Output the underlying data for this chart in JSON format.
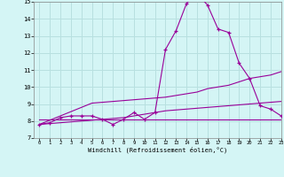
{
  "x": [
    0,
    1,
    2,
    3,
    4,
    5,
    6,
    7,
    8,
    9,
    10,
    11,
    12,
    13,
    14,
    15,
    16,
    17,
    18,
    19,
    20,
    21,
    22,
    23
  ],
  "y_main": [
    7.8,
    7.9,
    8.2,
    8.3,
    8.3,
    8.3,
    8.1,
    7.8,
    8.1,
    8.5,
    8.1,
    8.5,
    12.2,
    13.3,
    14.9,
    15.5,
    14.8,
    13.4,
    13.2,
    11.4,
    10.5,
    8.9,
    8.7,
    8.3
  ],
  "y_line1": [
    7.8,
    8.05,
    8.3,
    8.55,
    8.8,
    9.05,
    9.1,
    9.15,
    9.2,
    9.25,
    9.3,
    9.35,
    9.4,
    9.5,
    9.6,
    9.7,
    9.9,
    10.0,
    10.1,
    10.3,
    10.5,
    10.6,
    10.7,
    10.9
  ],
  "y_line2": [
    7.8,
    7.85,
    7.9,
    7.95,
    8.0,
    8.05,
    8.1,
    8.15,
    8.2,
    8.3,
    8.4,
    8.5,
    8.6,
    8.65,
    8.7,
    8.75,
    8.8,
    8.85,
    8.9,
    8.95,
    9.0,
    9.05,
    9.1,
    9.15
  ],
  "y_flat": [
    8.1,
    8.1,
    8.1,
    8.1,
    8.1,
    8.1,
    8.1,
    8.1,
    8.1,
    8.1,
    8.1,
    8.1,
    8.1,
    8.1,
    8.1,
    8.1,
    8.1,
    8.1,
    8.1,
    8.1,
    8.1,
    8.1,
    8.1,
    8.1
  ],
  "line_color": "#990099",
  "bg_color": "#d4f5f5",
  "grid_color": "#b8e0e0",
  "xlabel": "Windchill (Refroidissement éolien,°C)",
  "ylim": [
    7,
    15
  ],
  "xlim": [
    -0.5,
    23
  ],
  "yticks": [
    7,
    8,
    9,
    10,
    11,
    12,
    13,
    14,
    15
  ],
  "xticks": [
    0,
    1,
    2,
    3,
    4,
    5,
    6,
    7,
    8,
    9,
    10,
    11,
    12,
    13,
    14,
    15,
    16,
    17,
    18,
    19,
    20,
    21,
    22,
    23
  ]
}
